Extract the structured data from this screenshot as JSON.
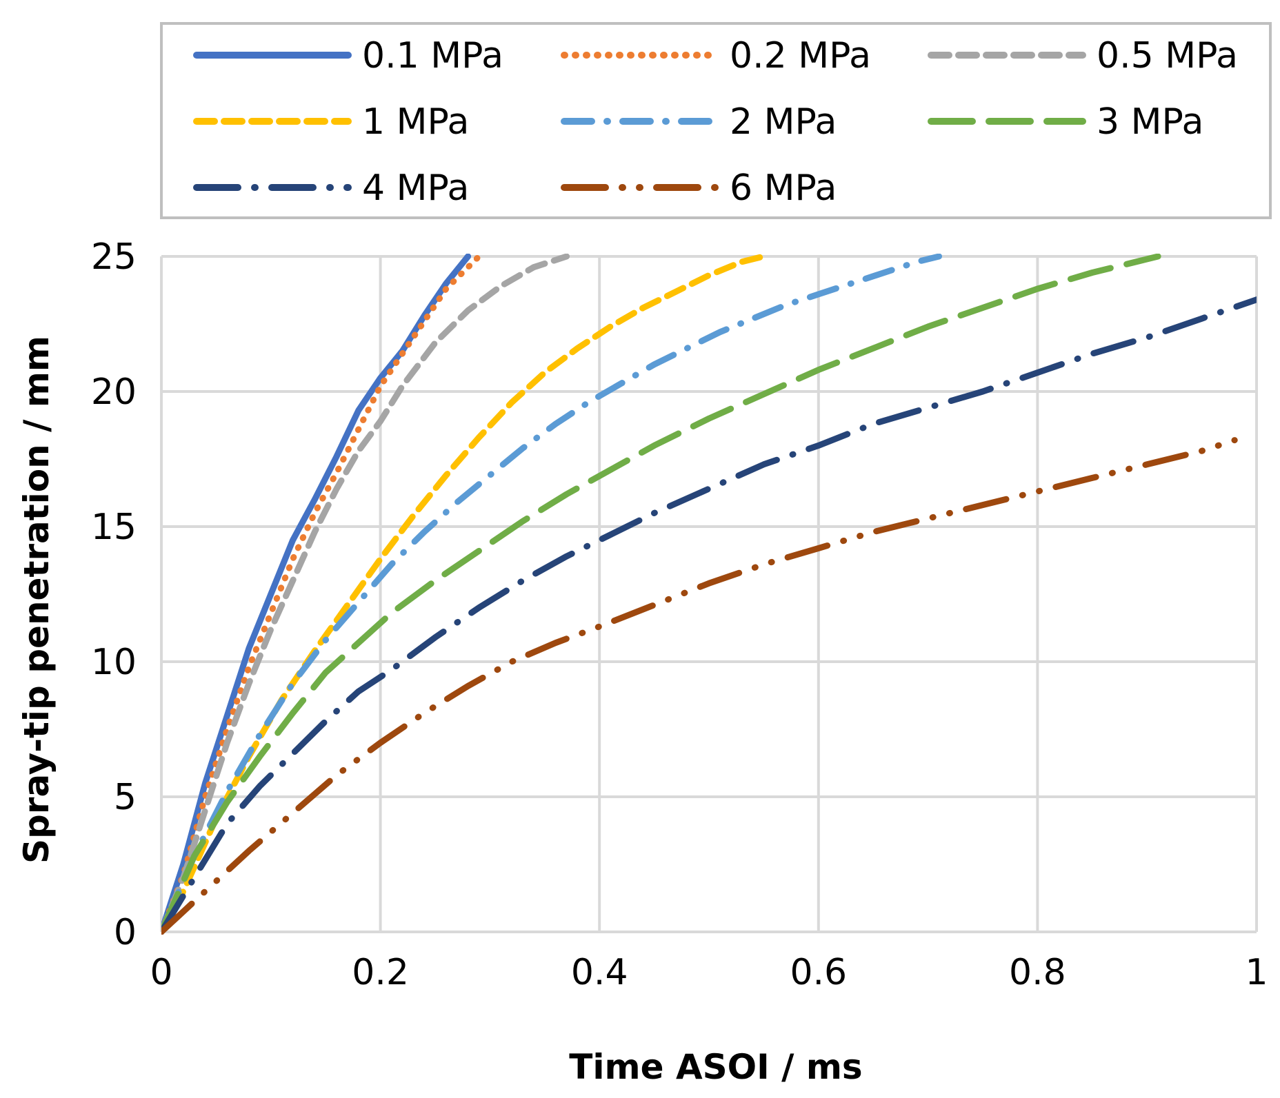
{
  "chart_data": {
    "type": "line",
    "title": "",
    "xlabel": "Time ASOI / ms",
    "ylabel": "Spray-tip penetration / mm",
    "xlim": [
      0,
      1
    ],
    "ylim": [
      0,
      25
    ],
    "xticks": [
      "0",
      "0.2",
      "0.4",
      "0.6",
      "0.8",
      "1"
    ],
    "yticks": [
      "0",
      "5",
      "10",
      "15",
      "20",
      "25"
    ],
    "grid": true,
    "legend_position": "top",
    "series": [
      {
        "name": "0.1 MPa",
        "color": "#4472C4",
        "style": "solid",
        "x": [
          0,
          0.02,
          0.04,
          0.06,
          0.08,
          0.1,
          0.12,
          0.14,
          0.16,
          0.18,
          0.2,
          0.22,
          0.24,
          0.26,
          0.28
        ],
        "y": [
          0,
          2.5,
          5.5,
          8.0,
          10.5,
          12.5,
          14.5,
          16.0,
          17.6,
          19.3,
          20.5,
          21.5,
          22.8,
          24.0,
          25.0
        ]
      },
      {
        "name": "0.2 MPa",
        "color": "#ED7D31",
        "style": "dot",
        "x": [
          0,
          0.02,
          0.04,
          0.06,
          0.08,
          0.1,
          0.12,
          0.14,
          0.16,
          0.18,
          0.2,
          0.22,
          0.24,
          0.26,
          0.29
        ],
        "y": [
          0,
          2.1,
          5.0,
          7.5,
          9.8,
          11.8,
          13.8,
          15.5,
          17.0,
          18.6,
          20.2,
          21.4,
          22.6,
          23.8,
          25.0
        ]
      },
      {
        "name": "0.5 MPa",
        "color": "#A5A5A5",
        "style": "dash",
        "x": [
          0,
          0.02,
          0.04,
          0.06,
          0.08,
          0.1,
          0.12,
          0.14,
          0.16,
          0.18,
          0.2,
          0.22,
          0.25,
          0.28,
          0.31,
          0.34,
          0.37
        ],
        "y": [
          0,
          2.0,
          4.5,
          7.0,
          9.2,
          11.2,
          13.0,
          14.8,
          16.4,
          17.8,
          18.9,
          20.2,
          21.8,
          23.0,
          23.9,
          24.6,
          25.0
        ]
      },
      {
        "name": "1 MPa",
        "color": "#FFC000",
        "style": "dash",
        "x": [
          0,
          0.02,
          0.05,
          0.08,
          0.11,
          0.14,
          0.17,
          0.2,
          0.23,
          0.26,
          0.29,
          0.32,
          0.35,
          0.38,
          0.41,
          0.44,
          0.47,
          0.5,
          0.53,
          0.55
        ],
        "y": [
          0,
          1.5,
          4.2,
          6.5,
          8.6,
          10.4,
          12.1,
          13.8,
          15.4,
          16.9,
          18.3,
          19.6,
          20.7,
          21.6,
          22.4,
          23.1,
          23.7,
          24.3,
          24.8,
          25.0
        ]
      },
      {
        "name": "2 MPa",
        "color": "#5B9BD5",
        "style": "dashdot",
        "x": [
          0,
          0.03,
          0.06,
          0.09,
          0.12,
          0.15,
          0.18,
          0.21,
          0.24,
          0.27,
          0.3,
          0.33,
          0.36,
          0.39,
          0.42,
          0.45,
          0.48,
          0.51,
          0.54,
          0.57,
          0.6,
          0.63,
          0.66,
          0.69,
          0.71
        ],
        "y": [
          0,
          2.8,
          5.2,
          7.3,
          9.2,
          10.8,
          12.2,
          13.6,
          14.8,
          15.9,
          16.9,
          17.9,
          18.8,
          19.6,
          20.3,
          21.0,
          21.6,
          22.2,
          22.7,
          23.2,
          23.6,
          24.0,
          24.4,
          24.8,
          25.0
        ]
      },
      {
        "name": "3 MPa",
        "color": "#70AD47",
        "style": "longdash",
        "x": [
          0,
          0.03,
          0.06,
          0.09,
          0.12,
          0.15,
          0.18,
          0.21,
          0.25,
          0.29,
          0.33,
          0.37,
          0.41,
          0.45,
          0.5,
          0.55,
          0.6,
          0.65,
          0.7,
          0.75,
          0.8,
          0.85,
          0.91
        ],
        "y": [
          0,
          2.8,
          4.8,
          6.5,
          8.1,
          9.6,
          10.7,
          11.8,
          13.0,
          14.1,
          15.2,
          16.2,
          17.1,
          18.0,
          19.0,
          19.9,
          20.8,
          21.6,
          22.4,
          23.1,
          23.8,
          24.4,
          25.0
        ]
      },
      {
        "name": "4 MPa",
        "color": "#264478",
        "style": "longdashdot",
        "x": [
          0,
          0.03,
          0.06,
          0.09,
          0.12,
          0.15,
          0.18,
          0.21,
          0.25,
          0.29,
          0.33,
          0.37,
          0.41,
          0.45,
          0.5,
          0.55,
          0.6,
          0.65,
          0.7,
          0.75,
          0.8,
          0.85,
          0.9,
          0.95,
          1.0
        ],
        "y": [
          0,
          2.0,
          4.0,
          5.4,
          6.6,
          7.8,
          8.9,
          9.7,
          10.9,
          12.0,
          13.0,
          13.9,
          14.7,
          15.5,
          16.4,
          17.3,
          18.0,
          18.8,
          19.4,
          20.0,
          20.7,
          21.4,
          22.0,
          22.7,
          23.4
        ]
      },
      {
        "name": "6 MPa",
        "color": "#9E480E",
        "style": "longdashdotdot",
        "x": [
          0,
          0.04,
          0.08,
          0.12,
          0.16,
          0.2,
          0.24,
          0.28,
          0.32,
          0.36,
          0.4,
          0.45,
          0.5,
          0.55,
          0.6,
          0.65,
          0.7,
          0.75,
          0.8,
          0.85,
          0.9,
          0.95,
          0.98
        ],
        "y": [
          0,
          1.5,
          3.0,
          4.4,
          5.8,
          7.0,
          8.1,
          9.1,
          10.0,
          10.7,
          11.3,
          12.1,
          12.9,
          13.6,
          14.2,
          14.8,
          15.3,
          15.8,
          16.3,
          16.8,
          17.3,
          17.8,
          18.2
        ]
      }
    ]
  }
}
